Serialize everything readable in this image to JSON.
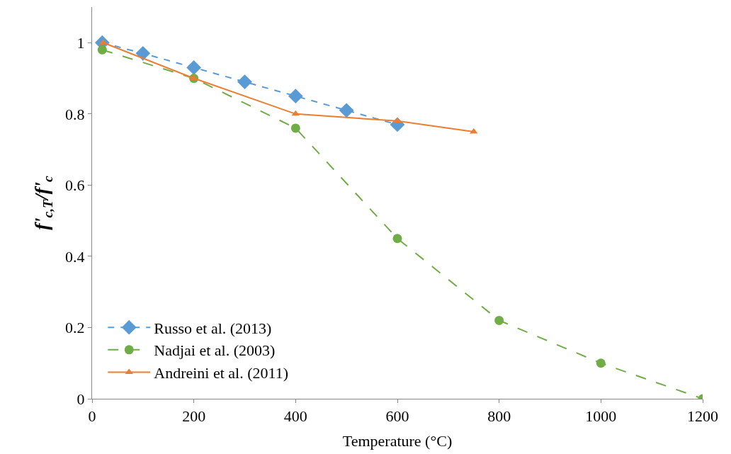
{
  "chart_data": {
    "type": "line",
    "xlabel": "Temperature (°C)",
    "ylabel": "f'$_{c,T}$/f'$_{c}$",
    "xlim": [
      0,
      1200
    ],
    "xticks": [
      0,
      200,
      400,
      600,
      800,
      1000,
      1200
    ],
    "ylim": [
      0,
      1.1
    ],
    "yticks": [
      0,
      0.2,
      0.4,
      0.6,
      0.8,
      1
    ],
    "legend": "bottom left",
    "series": [
      {
        "name": "Russo et al. (2013)",
        "color": "#5b9bd5",
        "marker": "diamond",
        "line_style": "dashed",
        "x": [
          20,
          100,
          200,
          300,
          400,
          500,
          600
        ],
        "values": [
          1.0,
          0.97,
          0.93,
          0.89,
          0.85,
          0.81,
          0.77
        ]
      },
      {
        "name": "Nadjai et al. (2003)",
        "color": "#70ad47",
        "marker": "circle",
        "line_style": "longdash",
        "x": [
          20,
          200,
          400,
          600,
          800,
          1000,
          1200
        ],
        "values": [
          0.98,
          0.9,
          0.76,
          0.45,
          0.22,
          0.1,
          0
        ]
      },
      {
        "name": "Andreini et al. (2011)",
        "color": "#ed7d31",
        "marker": "triangle",
        "line_style": "solid",
        "x": [
          22,
          200,
          400,
          600,
          750
        ],
        "values": [
          1.0,
          0.9,
          0.8,
          0.78,
          0.75
        ]
      }
    ]
  }
}
